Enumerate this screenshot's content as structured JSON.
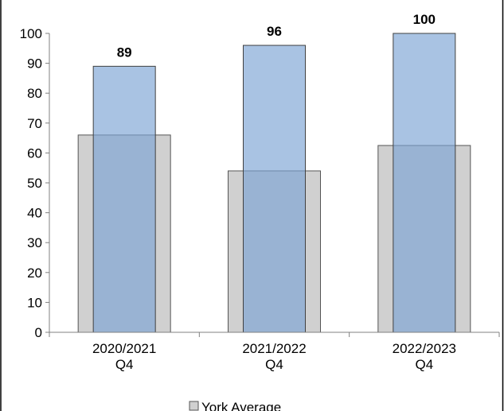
{
  "chart_data": {
    "type": "bar",
    "categories": [
      [
        "2020/2021",
        "Q4"
      ],
      [
        "2021/2022",
        "Q4"
      ],
      [
        "2022/2023",
        "Q4"
      ]
    ],
    "series": [
      {
        "name": "York Average",
        "values": [
          66,
          54,
          62.5
        ],
        "color": "#d0d0d0",
        "stroke": "#555555",
        "role": "background"
      },
      {
        "name": "",
        "values": [
          89,
          96,
          100
        ],
        "data_labels": [
          "89",
          "96",
          "100"
        ],
        "color": "#7ba3d4",
        "stroke": "#404040",
        "role": "foreground"
      }
    ],
    "y_ticks": [
      "0",
      "10",
      "20",
      "30",
      "40",
      "50",
      "60",
      "70",
      "80",
      "90",
      "100"
    ],
    "ylim": [
      0,
      100
    ],
    "grid": false,
    "legend": {
      "placement": "bottom",
      "entries": [
        "York Average"
      ]
    }
  }
}
